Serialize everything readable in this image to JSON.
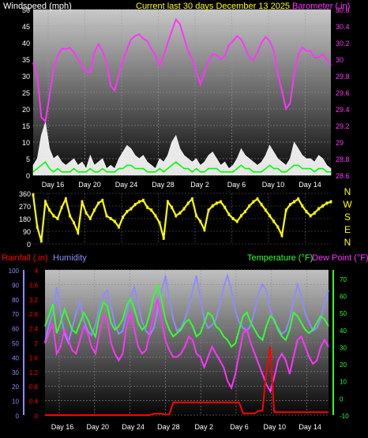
{
  "colors": {
    "windspeed": "#ffffff",
    "gust": "#00ff00",
    "barometer": "#ff33ff",
    "direction": "#ffff00",
    "rainfall": "#ff0000",
    "humidity": "#8c8cff",
    "temperature": "#33ff33",
    "dewpoint": "#ff33ff",
    "current_title": "#ffff00"
  },
  "chart_data": [
    {
      "type": "line",
      "title": "Current last 30 days December 13 2025",
      "x_ticks": [
        "Day 16",
        "Day 20",
        "Day 24",
        "Day 28",
        "Day 2",
        "Day 6",
        "Day 10",
        "Day 14"
      ],
      "left_axis": {
        "label": "Windspeed (mph)",
        "ylim": [
          0,
          50
        ],
        "ticks": [
          "0",
          "5",
          "10",
          "15",
          "20",
          "25",
          "30",
          "35",
          "40",
          "45",
          "50"
        ]
      },
      "right_axis": {
        "label": "Barometer (.in)",
        "ylim": [
          28.6,
          30.6
        ],
        "ticks": [
          "28.6",
          "28.8",
          "29",
          "29.2",
          "29.4",
          "29.6",
          "29.8",
          "30",
          "30.2",
          "30.4",
          "30.6"
        ]
      },
      "series": [
        {
          "name": "Barometer",
          "axis": "right",
          "values": [
            29.96,
            29.8,
            29.3,
            29.25,
            29.56,
            29.88,
            30.04,
            30.13,
            30.12,
            30.14,
            30.08,
            30.0,
            29.92,
            29.85,
            29.84,
            30.08,
            30.18,
            30.1,
            29.96,
            29.68,
            29.62,
            29.82,
            29.98,
            30.12,
            30.24,
            30.28,
            30.3,
            30.25,
            30.22,
            30.12,
            30.05,
            29.92,
            30.04,
            30.2,
            30.34,
            30.48,
            30.42,
            30.26,
            30.1,
            30.0,
            29.86,
            29.7,
            29.84,
            29.98,
            30.06,
            30.05,
            30.0,
            30.04,
            30.17,
            30.22,
            30.28,
            30.24,
            30.14,
            30.02,
            29.99,
            30.08,
            30.2,
            30.27,
            30.22,
            30.1,
            29.82,
            29.62,
            29.4,
            29.47,
            29.82,
            30.06,
            30.14,
            30.1,
            30.1,
            30.02,
            30.02,
            30.06,
            30.0,
            29.92
          ]
        },
        {
          "name": "Windspeed",
          "axis": "left",
          "values": [
            3,
            5,
            12,
            16,
            8,
            5,
            6,
            4,
            3,
            4,
            5,
            3,
            4,
            2,
            6,
            3,
            4,
            5,
            2,
            3,
            2,
            5,
            7,
            9,
            8,
            6,
            5,
            6,
            4,
            3,
            2,
            5,
            4,
            6,
            10,
            12,
            8,
            6,
            5,
            4,
            5,
            3,
            4,
            6,
            7,
            5,
            3,
            4,
            2,
            3,
            5,
            8,
            6,
            5,
            4,
            3,
            4,
            6,
            9,
            7,
            5,
            4,
            3,
            5,
            10,
            8,
            6,
            5,
            5,
            4,
            6,
            5,
            3,
            2
          ]
        },
        {
          "name": "Gust",
          "axis": "left",
          "values": [
            1,
            2,
            3,
            4,
            2,
            1,
            2,
            1,
            1,
            1,
            2,
            1,
            1,
            1,
            2,
            1,
            1,
            2,
            1,
            1,
            1,
            2,
            2,
            3,
            3,
            2,
            2,
            2,
            1,
            1,
            1,
            2,
            1,
            2,
            3,
            4,
            3,
            2,
            2,
            1,
            2,
            1,
            1,
            2,
            2,
            2,
            1,
            1,
            1,
            1,
            2,
            3,
            2,
            2,
            1,
            1,
            1,
            2,
            3,
            2,
            2,
            1,
            1,
            2,
            3,
            3,
            2,
            2,
            2,
            1,
            2,
            2,
            1,
            1
          ]
        }
      ]
    },
    {
      "type": "line",
      "title": "",
      "x_ticks": [],
      "left_axis": {
        "ylim": [
          0,
          360
        ],
        "ticks": [
          "0",
          "90",
          "180",
          "270",
          "360"
        ]
      },
      "right_labels": [
        "N",
        "W",
        "S",
        "E",
        "N"
      ],
      "series": [
        {
          "name": "Wind Direction",
          "values": [
            350,
            120,
            20,
            300,
            240,
            200,
            180,
            260,
            320,
            200,
            150,
            80,
            300,
            220,
            180,
            240,
            290,
            310,
            200,
            180,
            160,
            120,
            190,
            230,
            250,
            280,
            300,
            310,
            260,
            240,
            200,
            150,
            40,
            300,
            260,
            200,
            220,
            250,
            290,
            320,
            200,
            160,
            100,
            240,
            270,
            290,
            300,
            260,
            210,
            180,
            160,
            200,
            230,
            270,
            300,
            320,
            280,
            240,
            200,
            160,
            120,
            60,
            240,
            280,
            300,
            320,
            270,
            230,
            200,
            220,
            250,
            270,
            290,
            300
          ]
        }
      ]
    },
    {
      "type": "line",
      "title": "",
      "x_ticks": [
        "Day 16",
        "Day 20",
        "Day 24",
        "Day 28",
        "Day 2",
        "Day 6",
        "Day 10",
        "Day 14"
      ],
      "legend": [
        "Rainfall (.in)",
        "Humidity",
        "Temperature (°F)",
        "Dew Point (°F)"
      ],
      "left_axis_rain": {
        "label": "Rainfall (.in)",
        "ylim": [
          0,
          4
        ],
        "ticks": [
          "0",
          "0.4",
          "0.8",
          "1.2",
          "1.6",
          "2",
          "2.4",
          "2.8",
          "3.2",
          "3.6",
          "4"
        ]
      },
      "left_axis_humidity": {
        "label": "Humidity",
        "ylim": [
          0,
          100
        ],
        "ticks": [
          "0",
          "10",
          "20",
          "30",
          "40",
          "50",
          "60",
          "70",
          "80",
          "90",
          "100"
        ]
      },
      "right_axis": {
        "label": "Temperature (°F) Dew Point (°F)",
        "ylim": [
          -10,
          75
        ],
        "ticks": [
          "-10",
          "0",
          "10",
          "20",
          "30",
          "40",
          "50",
          "60",
          "70"
        ]
      },
      "series": [
        {
          "name": "Humidity",
          "axis": "humidity",
          "values": [
            50,
            62,
            70,
            88,
            70,
            56,
            50,
            60,
            70,
            78,
            65,
            58,
            55,
            62,
            74,
            82,
            86,
            75,
            62,
            56,
            58,
            70,
            80,
            88,
            76,
            64,
            58,
            55,
            60,
            72,
            85,
            96,
            80,
            66,
            58,
            60,
            66,
            74,
            86,
            96,
            80,
            66,
            60,
            62,
            66,
            76,
            88,
            96,
            86,
            72,
            64,
            60,
            58,
            62,
            72,
            84,
            90,
            86,
            72,
            64,
            60,
            56,
            58,
            66,
            78,
            90,
            82,
            70,
            64,
            58,
            60,
            66,
            78,
            86
          ]
        },
        {
          "name": "Temperature",
          "axis": "temp",
          "values": [
            42,
            48,
            55,
            38,
            44,
            52,
            46,
            40,
            38,
            44,
            50,
            46,
            40,
            36,
            48,
            56,
            54,
            44,
            40,
            42,
            46,
            54,
            58,
            52,
            44,
            40,
            42,
            50,
            60,
            66,
            58,
            46,
            40,
            36,
            38,
            40,
            44,
            46,
            42,
            36,
            38,
            44,
            50,
            48,
            42,
            40,
            36,
            34,
            30,
            32,
            40,
            48,
            50,
            44,
            40,
            36,
            34,
            42,
            48,
            46,
            40,
            36,
            34,
            40,
            50,
            48,
            44,
            40,
            38,
            40,
            44,
            48,
            46,
            42
          ]
        },
        {
          "name": "Dew Point",
          "axis": "temp",
          "values": [
            32,
            38,
            44,
            26,
            30,
            40,
            34,
            28,
            26,
            34,
            42,
            38,
            30,
            26,
            38,
            48,
            46,
            32,
            26,
            22,
            26,
            42,
            50,
            40,
            30,
            26,
            28,
            38,
            50,
            58,
            46,
            34,
            28,
            24,
            24,
            26,
            30,
            36,
            34,
            26,
            24,
            18,
            24,
            30,
            26,
            22,
            18,
            10,
            6,
            14,
            26,
            38,
            40,
            32,
            26,
            20,
            14,
            8,
            4,
            12,
            22,
            26,
            22,
            14,
            24,
            34,
            36,
            30,
            24,
            20,
            22,
            30,
            34,
            30
          ]
        },
        {
          "name": "Rainfall",
          "axis": "rain",
          "values": [
            0,
            0,
            0,
            0,
            0,
            0,
            0,
            0,
            0,
            0,
            0,
            0,
            0,
            0,
            0,
            0,
            0,
            0,
            0,
            0,
            0,
            0,
            0,
            0,
            0,
            0,
            0,
            0,
            0.04,
            0.04,
            0.04,
            0.02,
            0.02,
            0.35,
            0.35,
            0.35,
            0.35,
            0.35,
            0.35,
            0.35,
            0.35,
            0.35,
            0.35,
            0.35,
            0.35,
            0.35,
            0.35,
            0.35,
            0.35,
            0.35,
            0.35,
            0.05,
            0.05,
            0.05,
            0.05,
            0.12,
            0.12,
            1.2,
            1.9,
            0.08,
            0.08,
            0.08,
            0.08,
            0.08,
            0.08,
            0.08,
            0.08,
            0.08,
            0.08,
            0.08,
            0.08,
            0.08,
            0.08,
            0.08
          ]
        }
      ]
    }
  ]
}
